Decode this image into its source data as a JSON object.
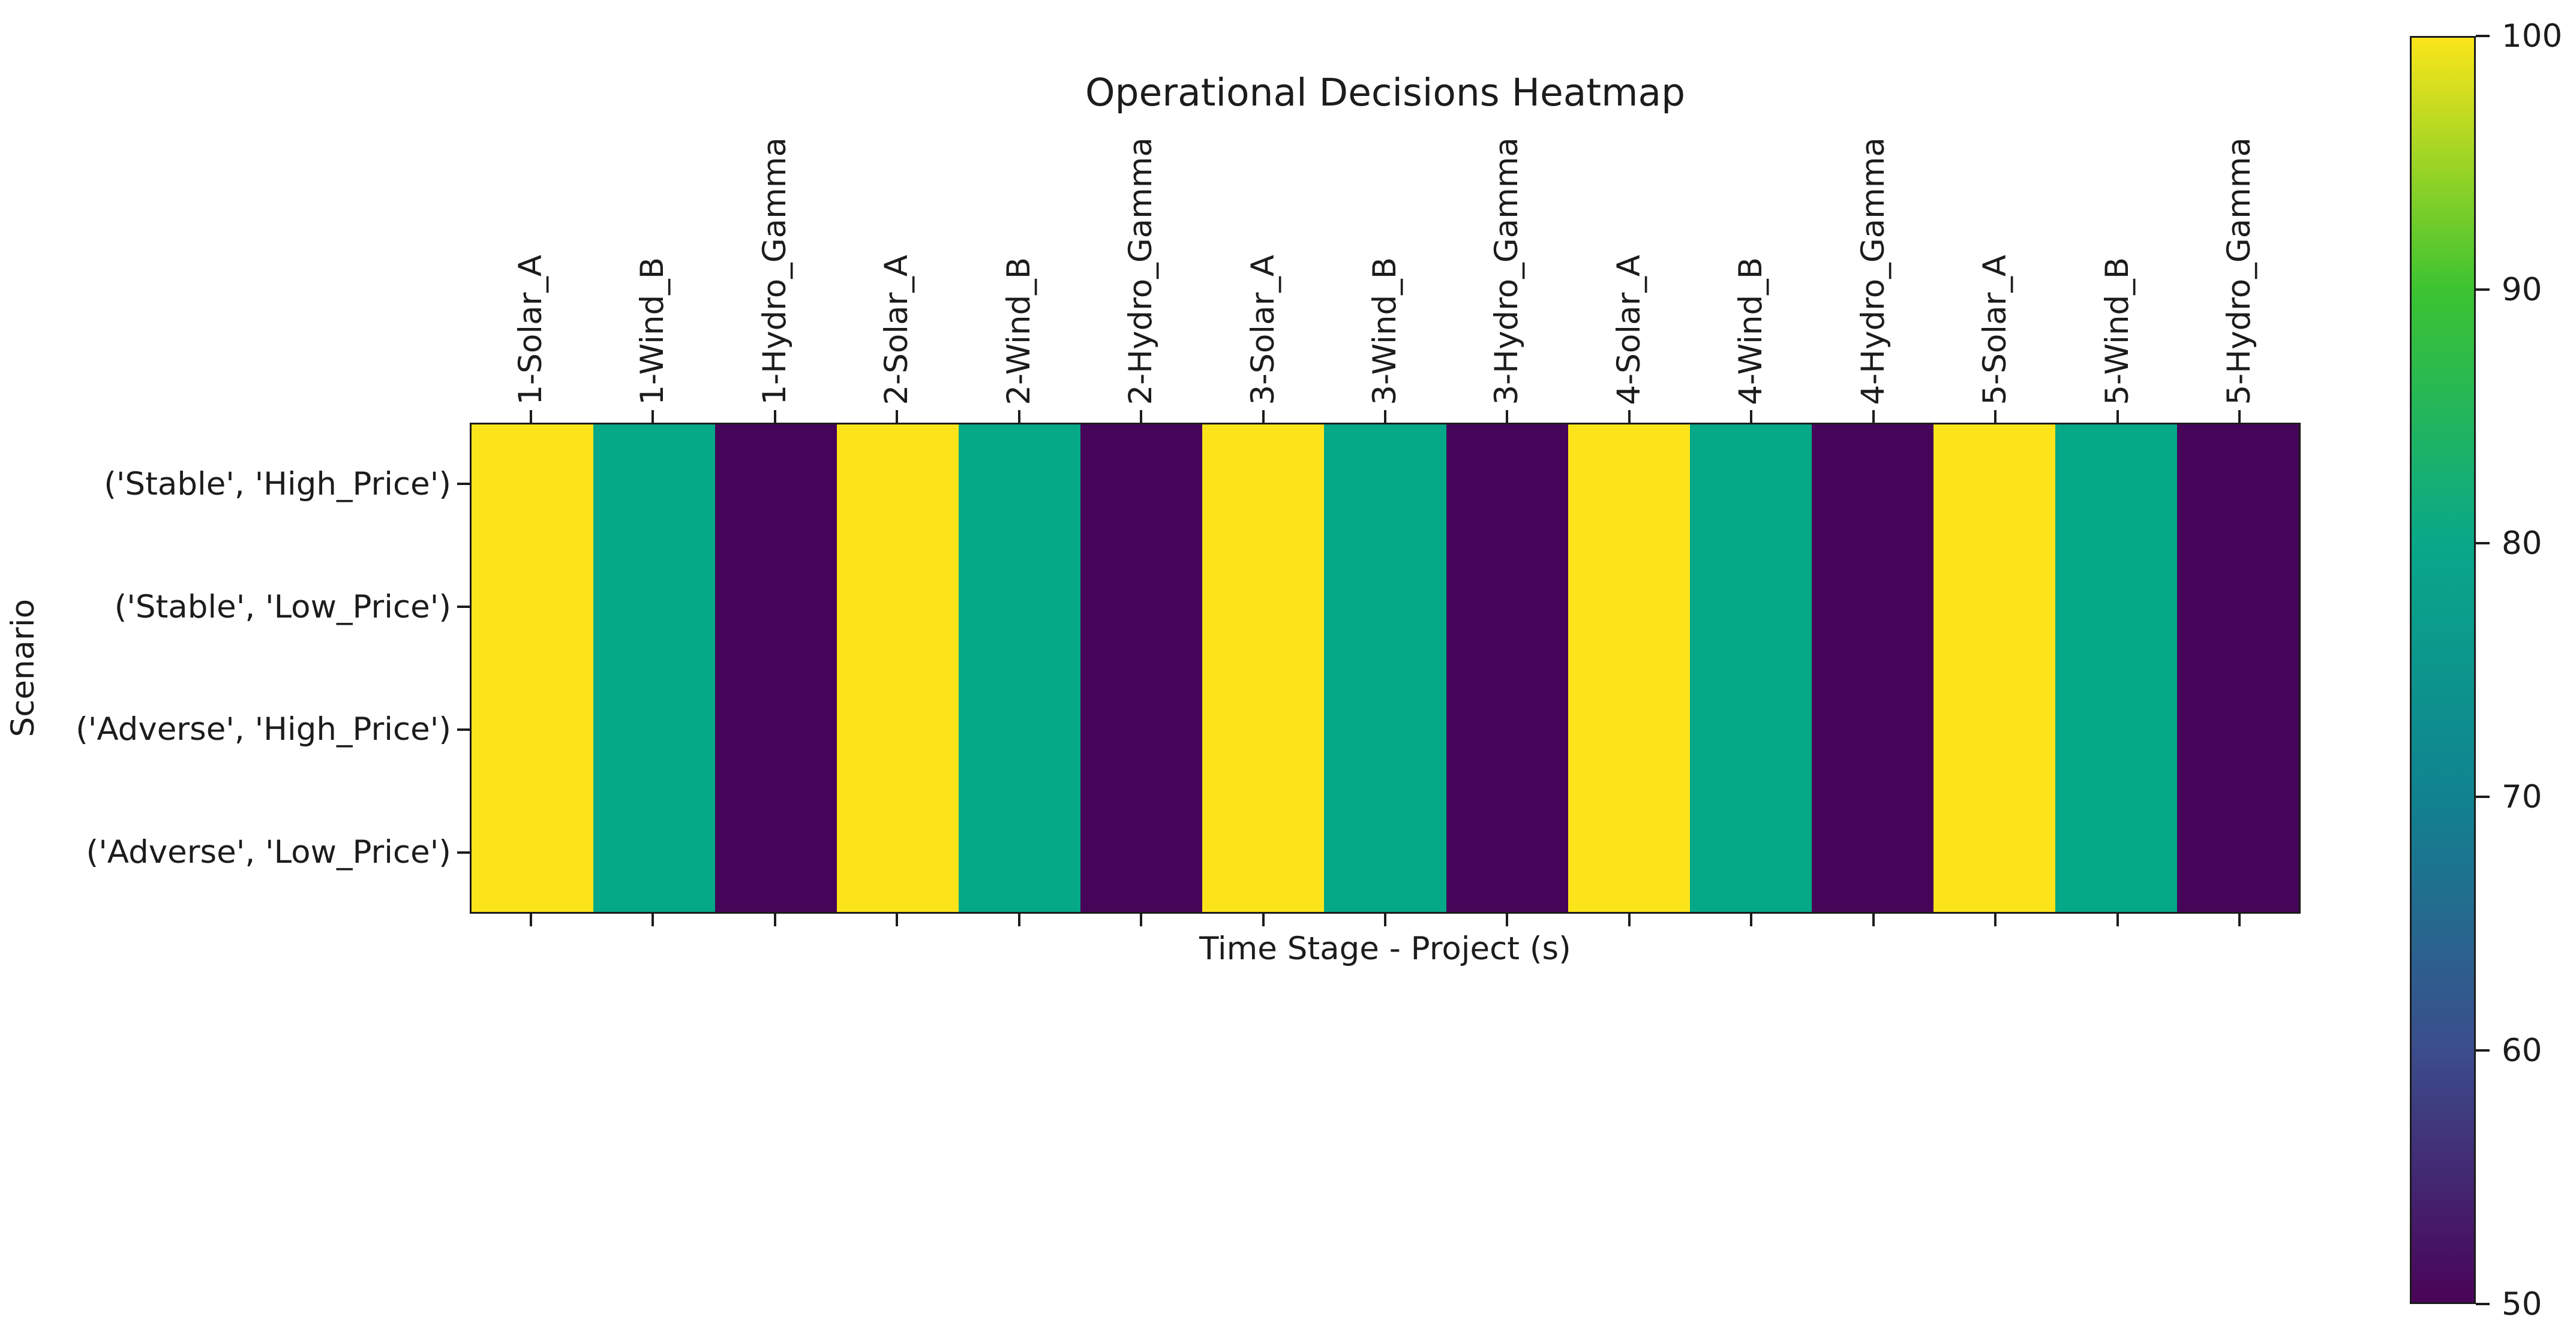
{
  "figure": {
    "background": "#ffffff",
    "text_color": "#1c1c1c",
    "spine_color": "#1c1c1c"
  },
  "chart_data": {
    "type": "heatmap",
    "title": "Operational Decisions Heatmap",
    "xlabel": "Time Stage - Project (s)",
    "ylabel": "Scenario",
    "x_labels": [
      "1-Solar_A",
      "1-Wind_B",
      "1-Hydro_Gamma",
      "2-Solar_A",
      "2-Wind_B",
      "2-Hydro_Gamma",
      "3-Solar_A",
      "3-Wind_B",
      "3-Hydro_Gamma",
      "4-Solar_A",
      "4-Wind_B",
      "4-Hydro_Gamma",
      "5-Solar_A",
      "5-Wind_B",
      "5-Hydro_Gamma"
    ],
    "y_labels": [
      "('Stable', 'High_Price')",
      "('Stable', 'Low_Price')",
      "('Adverse', 'High_Price')",
      "('Adverse', 'Low_Price')"
    ],
    "values": [
      [
        100,
        80,
        50,
        100,
        80,
        50,
        100,
        80,
        50,
        100,
        80,
        50,
        100,
        80,
        50
      ],
      [
        100,
        80,
        50,
        100,
        80,
        50,
        100,
        80,
        50,
        100,
        80,
        50,
        100,
        80,
        50
      ],
      [
        100,
        80,
        50,
        100,
        80,
        50,
        100,
        80,
        50,
        100,
        80,
        50,
        100,
        80,
        50
      ],
      [
        100,
        80,
        50,
        100,
        80,
        50,
        100,
        80,
        50,
        100,
        80,
        50,
        100,
        80,
        50
      ]
    ],
    "value_colors": {
      "100": "#fbe51a",
      "80": "#05a887",
      "50": "#460559"
    },
    "colorbar": {
      "min": 50,
      "max": 100,
      "colormap": "viridis",
      "tick_labels": [
        "100",
        "90",
        "80",
        "70",
        "60",
        "50"
      ],
      "tick_values": [
        100,
        90,
        80,
        70,
        60,
        50
      ],
      "gradient": [
        {
          "value": 100,
          "color": "#fbe51a"
        },
        {
          "value": 90,
          "color": "#3cc331"
        },
        {
          "value": 80,
          "color": "#09a889"
        },
        {
          "value": 70,
          "color": "#108390"
        },
        {
          "value": 60,
          "color": "#3b4d8c"
        },
        {
          "value": 50,
          "color": "#4a0458"
        }
      ]
    }
  }
}
